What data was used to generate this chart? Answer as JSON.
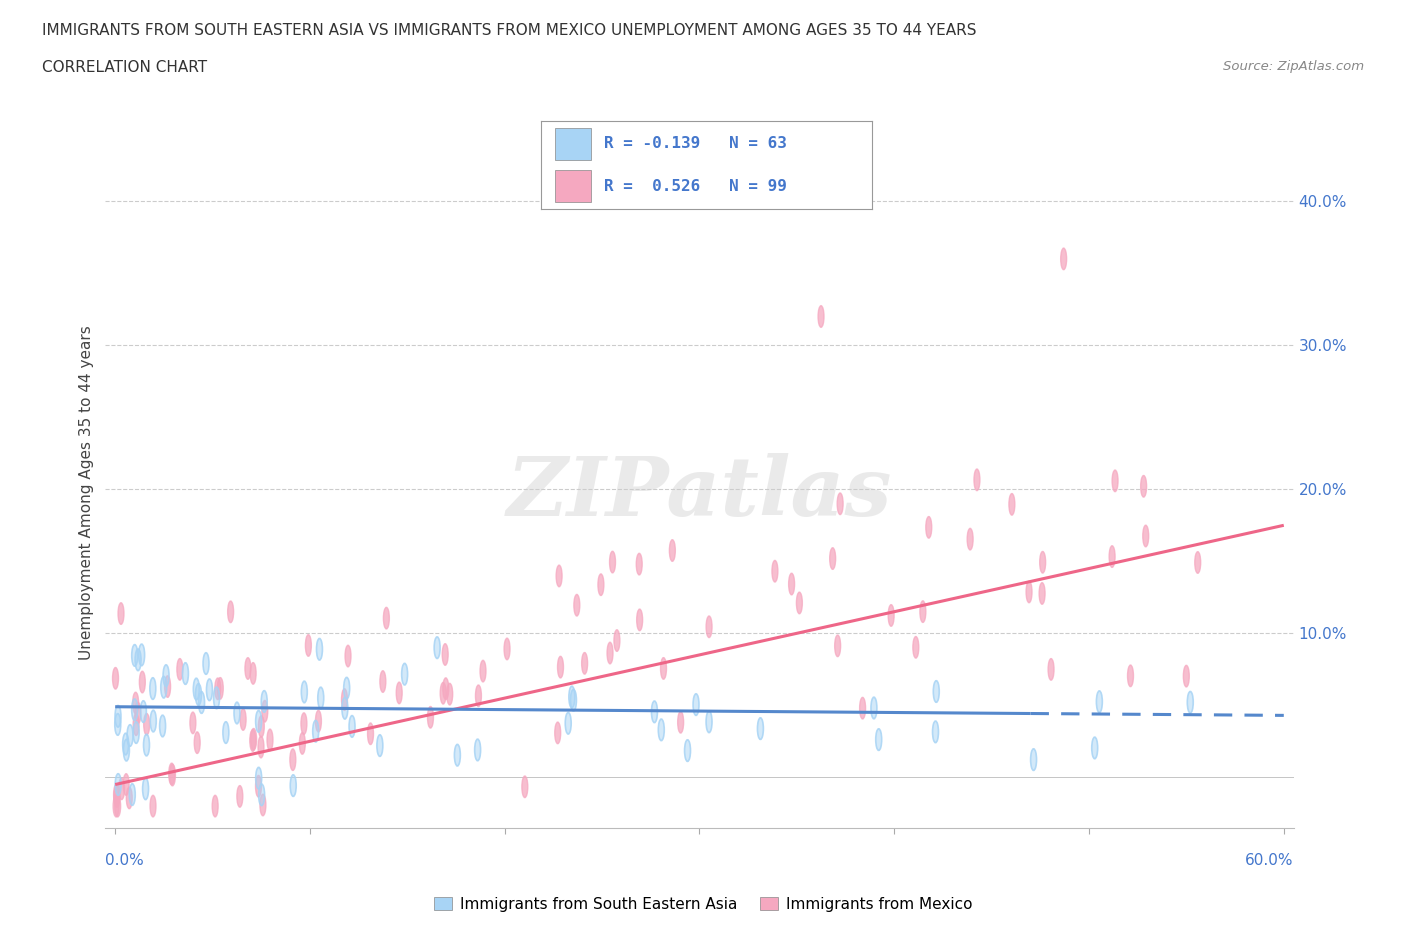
{
  "title_line1": "IMMIGRANTS FROM SOUTH EASTERN ASIA VS IMMIGRANTS FROM MEXICO UNEMPLOYMENT AMONG AGES 35 TO 44 YEARS",
  "title_line2": "CORRELATION CHART",
  "source": "Source: ZipAtlas.com",
  "ylabel": "Unemployment Among Ages 35 to 44 years",
  "xlim": [
    0.0,
    0.6
  ],
  "ylim": [
    -0.035,
    0.43
  ],
  "y_ticks": [
    0.0,
    0.1,
    0.2,
    0.3,
    0.4
  ],
  "y_tick_labels": [
    "",
    "10.0%",
    "20.0%",
    "30.0%",
    "40.0%"
  ],
  "color_sea": "#a8d4f5",
  "color_mex": "#f5a8c0",
  "color_sea_line": "#5588cc",
  "color_mex_line": "#ee6688",
  "color_text_blue": "#4477cc",
  "color_title": "#333333",
  "sea_trend": [
    0.049,
    0.043
  ],
  "mex_trend": [
    -0.005,
    0.175
  ],
  "background_color": "#ffffff",
  "watermark_text": "ZIPatlas",
  "legend_r1_val": "-0.139",
  "legend_r1_n": "63",
  "legend_r2_val": "0.526",
  "legend_r2_n": "99",
  "bottom_label_sea": "Immigrants from South Eastern Asia",
  "bottom_label_mex": "Immigrants from Mexico"
}
